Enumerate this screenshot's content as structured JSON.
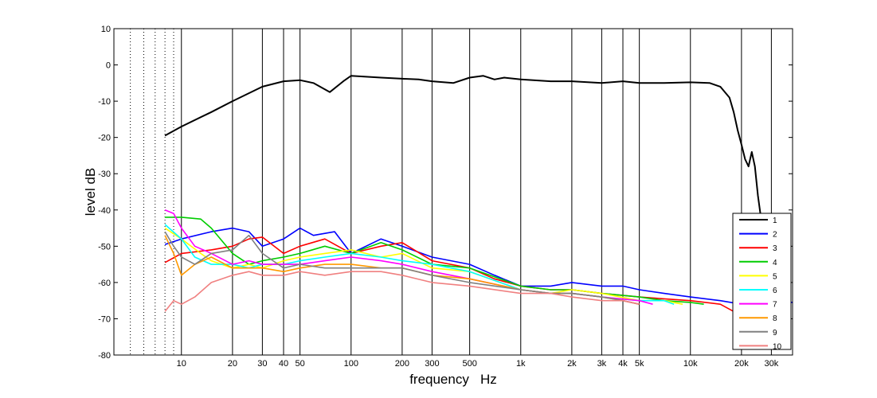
{
  "chart_data": {
    "type": "line",
    "xlabel": "frequency   Hz",
    "ylabel": "level dB",
    "x_scale": "log",
    "xlim": [
      4,
      40000
    ],
    "ylim": [
      -80,
      10
    ],
    "grid": "x-only",
    "x_ticks": [
      {
        "value": 10,
        "label": "10"
      },
      {
        "value": 20,
        "label": "20"
      },
      {
        "value": 30,
        "label": "30"
      },
      {
        "value": 40,
        "label": "40"
      },
      {
        "value": 50,
        "label": "50"
      },
      {
        "value": 100,
        "label": "100"
      },
      {
        "value": 200,
        "label": "200"
      },
      {
        "value": 300,
        "label": "300"
      },
      {
        "value": 500,
        "label": "500"
      },
      {
        "value": 1000,
        "label": "1k"
      },
      {
        "value": 2000,
        "label": "2k"
      },
      {
        "value": 3000,
        "label": "3k"
      },
      {
        "value": 4000,
        "label": "4k"
      },
      {
        "value": 5000,
        "label": "5k"
      },
      {
        "value": 10000,
        "label": "10k"
      },
      {
        "value": 20000,
        "label": "20k"
      },
      {
        "value": 30000,
        "label": "30k"
      }
    ],
    "x_minor_dotted": [
      5,
      6,
      7,
      8,
      9
    ],
    "y_ticks": [
      10,
      0,
      -10,
      -20,
      -30,
      -40,
      -50,
      -60,
      -70,
      -80
    ],
    "legend_position": "bottom-right",
    "series": [
      {
        "name": "1",
        "color": "#000000",
        "x": [
          8,
          10,
          15,
          20,
          30,
          40,
          50,
          60,
          75,
          90,
          100,
          150,
          200,
          250,
          300,
          400,
          500,
          600,
          700,
          800,
          1000,
          1500,
          2000,
          3000,
          4000,
          5000,
          7000,
          10000,
          13000,
          15000,
          17000,
          18000,
          19000,
          20000,
          21000,
          22000,
          23000,
          24000,
          25000,
          26000
        ],
        "y": [
          -19.5,
          -17,
          -13,
          -10,
          -6,
          -4.5,
          -4.2,
          -5,
          -7.5,
          -4.5,
          -3,
          -3.5,
          -3.8,
          -4,
          -4.5,
          -5,
          -3.5,
          -3,
          -4,
          -3.5,
          -4,
          -4.5,
          -4.5,
          -5,
          -4.5,
          -5,
          -5,
          -4.8,
          -5,
          -6,
          -9,
          -13,
          -18,
          -22,
          -26,
          -28,
          -24,
          -28,
          -36,
          -42
        ]
      },
      {
        "name": "2",
        "color": "#0000ff",
        "x": [
          8,
          10,
          15,
          20,
          25,
          30,
          40,
          50,
          60,
          80,
          100,
          150,
          200,
          300,
          500,
          700,
          1000,
          1500,
          2000,
          3000,
          4000,
          5000,
          7000,
          10000,
          15000,
          20000,
          30000,
          40000
        ],
        "y": [
          -49.5,
          -48,
          -46,
          -45,
          -46,
          -50,
          -48,
          -45,
          -47,
          -46,
          -52,
          -48,
          -50,
          -53,
          -55,
          -58,
          -61,
          -61,
          -60,
          -61,
          -61,
          -62,
          -63,
          -64,
          -65,
          -66,
          -65,
          -65.5
        ]
      },
      {
        "name": "3",
        "color": "#ff0000",
        "x": [
          8,
          10,
          15,
          20,
          25,
          30,
          40,
          50,
          70,
          100,
          150,
          200,
          300,
          500,
          700,
          1000,
          1500,
          2000,
          3000,
          5000,
          7000,
          10000,
          15000,
          18000
        ],
        "y": [
          -54.5,
          -52,
          -51,
          -50,
          -48,
          -47.5,
          -52,
          -50,
          -48,
          -52,
          -50,
          -49,
          -54,
          -56,
          -59,
          -61,
          -62,
          -62,
          -63,
          -64,
          -64.5,
          -65,
          -66,
          -68
        ]
      },
      {
        "name": "4",
        "color": "#00cc00",
        "x": [
          8,
          10,
          13,
          15,
          20,
          25,
          30,
          40,
          50,
          70,
          100,
          150,
          200,
          300,
          500,
          1000,
          1500,
          2000,
          3000,
          5000,
          7000,
          10000,
          12000
        ],
        "y": [
          -42,
          -42,
          -42.5,
          -45,
          -52,
          -55,
          -54,
          -53,
          -52,
          -50,
          -52,
          -49,
          -51,
          -55,
          -56,
          -61,
          -62,
          -62,
          -63,
          -64,
          -65,
          -65.5,
          -66
        ]
      },
      {
        "name": "5",
        "color": "#ffff00",
        "x": [
          8,
          10,
          13,
          15,
          20,
          25,
          30,
          40,
          50,
          70,
          100,
          150,
          200,
          300,
          500,
          1000,
          1500,
          2000,
          3000,
          5000,
          7000,
          9000
        ],
        "y": [
          -45,
          -48,
          -52,
          -54,
          -56,
          -55,
          -56,
          -54,
          -53,
          -52,
          -51,
          -53,
          -52,
          -56,
          -57,
          -62,
          -63,
          -62,
          -63,
          -65,
          -65,
          -66
        ]
      },
      {
        "name": "6",
        "color": "#00ffff",
        "x": [
          8,
          10,
          12,
          15,
          20,
          25,
          30,
          40,
          50,
          70,
          100,
          150,
          200,
          300,
          500,
          1000,
          1500,
          2000,
          3000,
          5000,
          7000,
          8000
        ],
        "y": [
          -44,
          -48,
          -53,
          -55,
          -55,
          -56,
          -55,
          -55,
          -54,
          -53,
          -52,
          -53,
          -54,
          -55,
          -57,
          -62,
          -63,
          -63,
          -64,
          -65,
          -65,
          -66
        ]
      },
      {
        "name": "7",
        "color": "#ff00ff",
        "x": [
          8,
          9,
          10,
          12,
          15,
          20,
          25,
          30,
          40,
          50,
          70,
          100,
          150,
          200,
          300,
          500,
          1000,
          1500,
          2000,
          3000,
          5000,
          6000
        ],
        "y": [
          -40,
          -41,
          -45,
          -50,
          -52,
          -55,
          -54,
          -55,
          -55,
          -55,
          -54,
          -53,
          -54,
          -55,
          -57,
          -59,
          -62,
          -63,
          -63,
          -64,
          -65,
          -66
        ]
      },
      {
        "name": "8",
        "color": "#ff9900",
        "x": [
          8,
          9,
          10,
          12,
          15,
          20,
          25,
          30,
          40,
          50,
          70,
          100,
          150,
          200,
          300,
          500,
          1000,
          1500,
          2000,
          3000,
          4000,
          5000
        ],
        "y": [
          -47,
          -52,
          -58,
          -55,
          -53,
          -56,
          -56,
          -56,
          -57,
          -56,
          -55,
          -55,
          -56,
          -56,
          -58,
          -59,
          -62,
          -63,
          -63,
          -64,
          -65,
          -66
        ]
      },
      {
        "name": "9",
        "color": "#808080",
        "x": [
          8,
          9,
          10,
          12,
          15,
          20,
          25,
          30,
          40,
          50,
          70,
          100,
          150,
          200,
          300,
          500,
          1000,
          1500,
          2000,
          3000,
          4000,
          5000
        ],
        "y": [
          -46,
          -50,
          -53,
          -55,
          -52,
          -51,
          -47,
          -52,
          -56,
          -55,
          -56,
          -56,
          -56,
          -56,
          -58,
          -60,
          -62,
          -63,
          -63,
          -64,
          -65,
          -66
        ]
      },
      {
        "name": "10",
        "color": "#f08080",
        "x": [
          8,
          9,
          10,
          12,
          15,
          20,
          25,
          30,
          40,
          50,
          70,
          100,
          150,
          200,
          300,
          500,
          1000,
          1500,
          2000,
          3000,
          4000,
          5000
        ],
        "y": [
          -68,
          -65,
          -66,
          -64,
          -60,
          -58,
          -57,
          -58,
          -58,
          -57,
          -58,
          -57,
          -57,
          -58,
          -60,
          -61,
          -63,
          -63,
          -64,
          -65,
          -65,
          -66
        ]
      }
    ]
  }
}
